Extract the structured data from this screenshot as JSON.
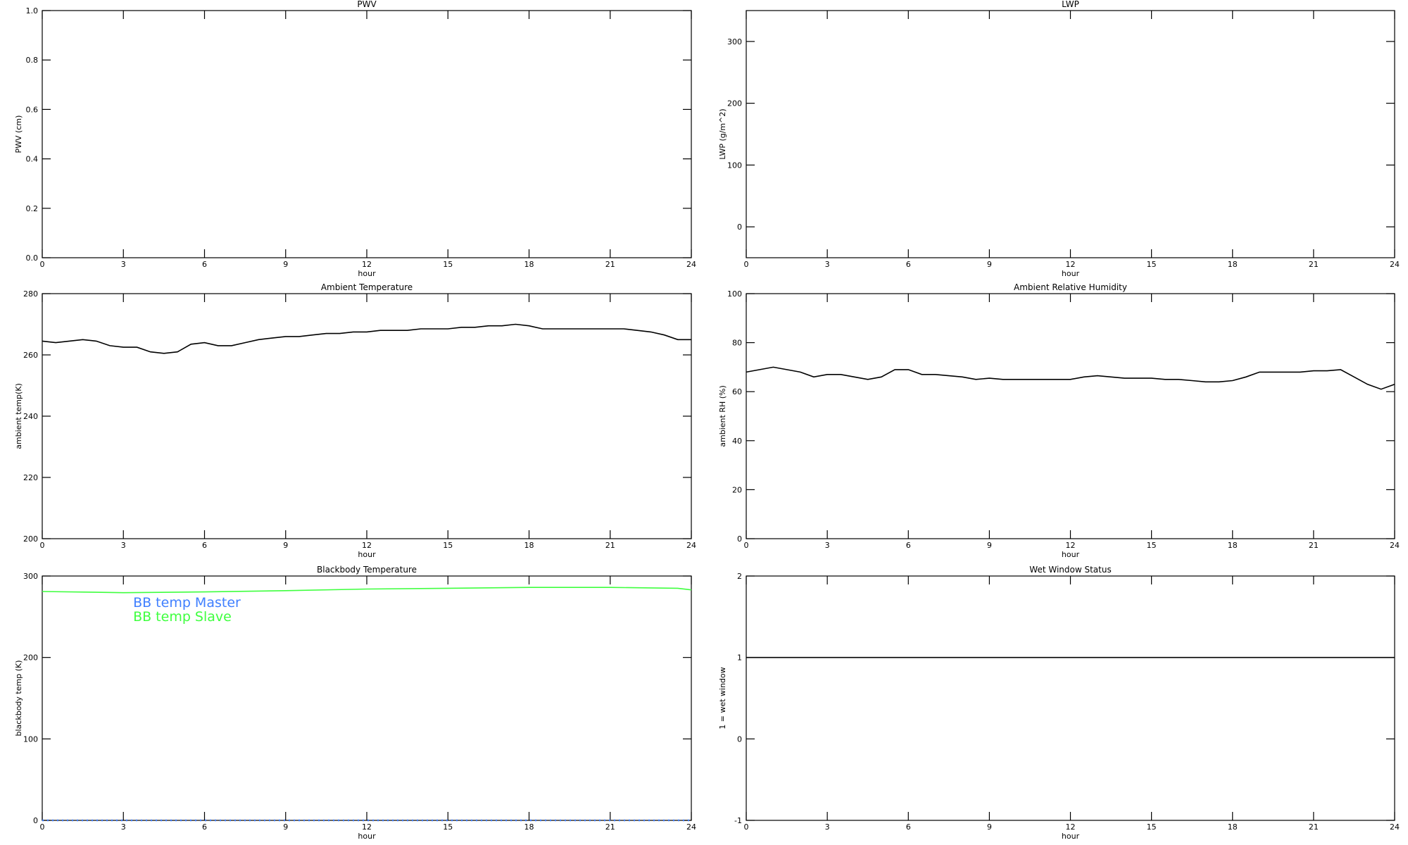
{
  "chart_data": [
    {
      "type": "line",
      "title": "PWV",
      "xlabel": "hour",
      "ylabel": "PWV (cm)",
      "xlim": [
        0,
        24
      ],
      "xticks": [
        0,
        3,
        6,
        9,
        12,
        15,
        18,
        21,
        24
      ],
      "ylim": [
        0,
        1
      ],
      "yticks": [
        {
          "value": 0,
          "label": "0.0"
        },
        {
          "value": 0.2,
          "label": "0.2"
        },
        {
          "value": 0.4,
          "label": "0.4"
        },
        {
          "value": 0.6,
          "label": "0.6"
        },
        {
          "value": 0.8,
          "label": "0.8"
        },
        {
          "value": 1,
          "label": "1.0"
        }
      ]
    },
    {
      "type": "line",
      "title": "LWP",
      "xlabel": "hour",
      "ylabel": "LWP (g/m^2)",
      "xlim": [
        0,
        24
      ],
      "xticks": [
        0,
        3,
        6,
        9,
        12,
        15,
        18,
        21,
        24
      ],
      "ylim": [
        -50,
        350
      ],
      "yticks": [
        0,
        100,
        200,
        300
      ]
    },
    {
      "type": "line",
      "title": "Ambient Temperature",
      "xlabel": "hour",
      "ylabel": "ambient temp(K)",
      "xlim": [
        0,
        24
      ],
      "xticks": [
        0,
        3,
        6,
        9,
        12,
        15,
        18,
        21,
        24
      ],
      "ylim": [
        200,
        280
      ],
      "yticks": [
        200,
        220,
        240,
        260,
        280
      ],
      "x": [
        0,
        0.5,
        1,
        1.5,
        2,
        2.5,
        3,
        3.5,
        4,
        4.5,
        5,
        5.5,
        6,
        6.5,
        7,
        7.5,
        8,
        8.5,
        9,
        9.5,
        10,
        10.5,
        11,
        11.5,
        12,
        12.5,
        13,
        13.5,
        14,
        14.5,
        15,
        15.5,
        16,
        16.5,
        17,
        17.5,
        18,
        18.5,
        19,
        19.5,
        20,
        20.5,
        21,
        21.5,
        22,
        22.5,
        23,
        23.5,
        24
      ],
      "series": [
        {
          "color": "#000000",
          "values": [
            264.5,
            264,
            264.5,
            265,
            264.5,
            263,
            262.5,
            262.5,
            261,
            260.5,
            261,
            263.5,
            264,
            263,
            263,
            264,
            265,
            265.5,
            266,
            266,
            266.5,
            267,
            267,
            267.5,
            267.5,
            268,
            268,
            268,
            268.5,
            268.5,
            268.5,
            269,
            269,
            269.5,
            269.5,
            270,
            269.5,
            268.5,
            268.5,
            268.5,
            268.5,
            268.5,
            268.5,
            268.5,
            268,
            267.5,
            266.5,
            265,
            265
          ]
        }
      ]
    },
    {
      "type": "line",
      "title": "Ambient Relative Humidity",
      "xlabel": "hour",
      "ylabel": "ambient RH (%)",
      "xlim": [
        0,
        24
      ],
      "xticks": [
        0,
        3,
        6,
        9,
        12,
        15,
        18,
        21,
        24
      ],
      "ylim": [
        0,
        100
      ],
      "yticks": [
        0,
        20,
        40,
        60,
        80,
        100
      ],
      "x": [
        0,
        0.5,
        1,
        1.5,
        2,
        2.5,
        3,
        3.5,
        4,
        4.5,
        5,
        5.5,
        6,
        6.5,
        7,
        7.5,
        8,
        8.5,
        9,
        9.5,
        10,
        10.5,
        11,
        11.5,
        12,
        12.5,
        13,
        13.5,
        14,
        14.5,
        15,
        15.5,
        16,
        16.5,
        17,
        17.5,
        18,
        18.5,
        19,
        19.5,
        20,
        20.5,
        21,
        21.5,
        22,
        22.5,
        23,
        23.5,
        24
      ],
      "series": [
        {
          "color": "#000000",
          "values": [
            68,
            69,
            70,
            69,
            68,
            66,
            67,
            67,
            66,
            65,
            66,
            69,
            69,
            67,
            67,
            66.5,
            66,
            65,
            65.5,
            65,
            65,
            65,
            65,
            65,
            65,
            66,
            66.5,
            66,
            65.5,
            65.5,
            65.5,
            65,
            65,
            64.5,
            64,
            64,
            64.5,
            66,
            68,
            68,
            68,
            68,
            68.5,
            68.5,
            69,
            66,
            63,
            61,
            63
          ]
        }
      ]
    },
    {
      "type": "line",
      "title": "Blackbody Temperature",
      "xlabel": "hour",
      "ylabel": "blackbody temp (K)",
      "xlim": [
        0,
        24
      ],
      "xticks": [
        0,
        3,
        6,
        9,
        12,
        15,
        18,
        21,
        24
      ],
      "ylim": [
        0,
        300
      ],
      "yticks": [
        0,
        100,
        200,
        300
      ],
      "legend": "upper left",
      "x": [
        0,
        2,
        3,
        6,
        9,
        12,
        15,
        18,
        21,
        23.5,
        24
      ],
      "series": [
        {
          "name": "BB temp Master",
          "color": "#3f7fff",
          "linestyle": "dotted",
          "values": [
            0,
            0,
            0,
            0,
            0,
            0,
            0,
            0,
            0,
            0,
            0
          ]
        },
        {
          "name": "BB temp Slave",
          "color": "#3fff3f",
          "values": [
            281,
            280,
            279.5,
            280.5,
            282,
            284,
            285,
            286,
            286,
            285,
            283
          ]
        }
      ]
    },
    {
      "type": "line",
      "title": "Wet Window Status",
      "xlabel": "hour",
      "ylabel": "1 = wet window",
      "xlim": [
        0,
        24
      ],
      "xticks": [
        0,
        3,
        6,
        9,
        12,
        15,
        18,
        21,
        24
      ],
      "ylim": [
        -1,
        2
      ],
      "yticks": [
        -1,
        0,
        1,
        2
      ],
      "x": [
        0,
        24
      ],
      "series": [
        {
          "color": "#000000",
          "values": [
            1,
            1
          ]
        }
      ]
    }
  ]
}
